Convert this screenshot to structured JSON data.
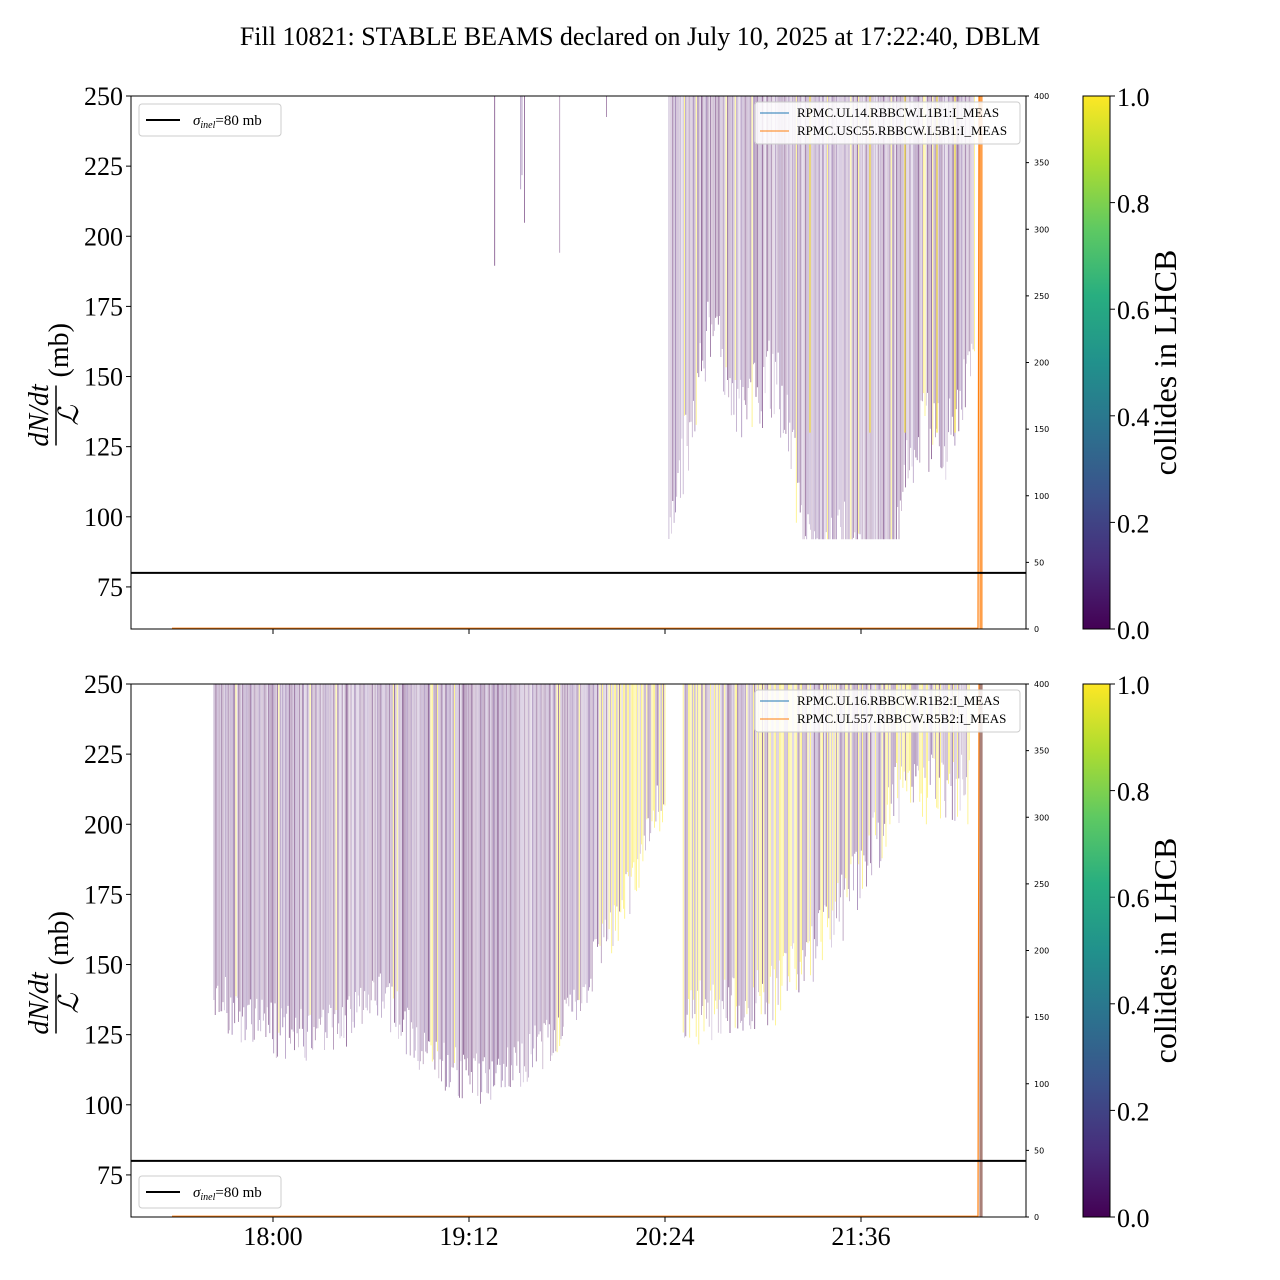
{
  "chart_data": {
    "title": "Fill 10821: STABLE BEAMS declared on July 10, 2025 at 17:22:40, DBLM",
    "x_tick_labels": [
      "18:00",
      "19:12",
      "20:24",
      "21:36"
    ],
    "y_ticks": [
      75,
      100,
      125,
      150,
      175,
      200,
      225,
      250
    ],
    "ylim": [
      60,
      250
    ],
    "ylabel_numerator": "dN/dt",
    "ylabel_denominator": "ℒ",
    "ylabel_unit": "(mb)",
    "right_y_ticks": [
      0,
      50,
      100,
      150,
      200,
      250,
      300,
      350,
      400
    ],
    "right_ylim": [
      0,
      400
    ],
    "colorbar": {
      "label": "collides in LHCB",
      "ticks": [
        "0.0",
        "0.2",
        "0.4",
        "0.6",
        "0.8",
        "1.0"
      ],
      "colormap": "viridis"
    },
    "reference_line": {
      "value": 80,
      "sigma": "σ",
      "subscript": "inel",
      "label_suffix": "=80 mb"
    },
    "panels": [
      {
        "type": "bar",
        "legend_right": [
          "RPMC.UL14.RBBCW.L1B1:I_MEAS",
          "RPMC.USC55.RBBCW.L5B1:I_MEAS"
        ],
        "legend_left_position": "top-left"
      },
      {
        "type": "bar",
        "legend_right": [
          "RPMC.UL16.RBBCW.R1B2:I_MEAS",
          "RPMC.UL557.RBBCW.R5B2:I_MEAS"
        ],
        "legend_left_position": "bottom-left"
      }
    ],
    "colors": {
      "purple_dense": "#440154",
      "purple_light": "#6a3d8a",
      "yellow": "#fde725",
      "orange_line": "#ff7f0e",
      "blue_line": "#1f77b4",
      "brown_line": "#8c564b"
    }
  }
}
